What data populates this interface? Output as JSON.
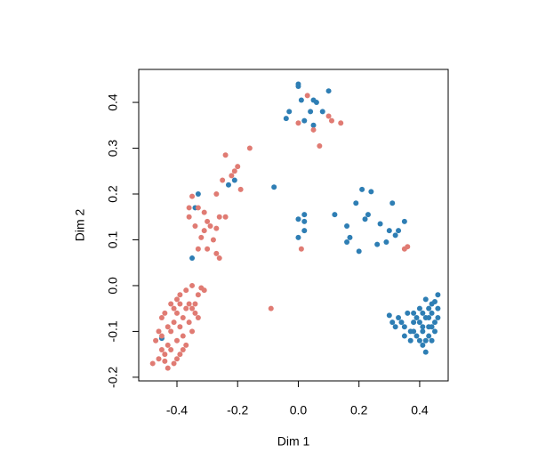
{
  "chart_data": {
    "type": "scatter",
    "x_label": "Dim 1",
    "y_label": "Dim 2",
    "xlim": [
      -0.526,
      0.494
    ],
    "ylim": [
      -0.208,
      0.472
    ],
    "xticks": [
      -0.4,
      -0.2,
      {
        "value": 0,
        "label": "0.0"
      },
      0.2,
      0.4
    ],
    "yticks": [
      -0.2,
      -0.1,
      {
        "value": 0,
        "label": "0.0"
      },
      0.1,
      0.2,
      0.3,
      0.4
    ],
    "series": [
      {
        "color": "#2e7eb4",
        "x": [
          0.0,
          0.0,
          0.1,
          -0.03,
          -0.04,
          0.01,
          0.05,
          0.04,
          0.02,
          0.05,
          0.08,
          0.06,
          -0.08,
          0.0,
          0.02,
          0.02,
          0.02,
          0.0,
          0.12,
          0.16,
          0.2,
          0.19,
          0.21,
          0.24,
          0.22,
          0.23,
          0.27,
          0.3,
          0.31,
          0.26,
          0.32,
          0.33,
          0.35,
          0.16,
          0.17,
          0.29,
          -0.33,
          -0.34,
          -0.35,
          -0.23,
          -0.21,
          -0.45,
          0.3,
          0.33,
          0.35,
          0.37,
          0.38,
          0.39,
          0.4,
          0.41,
          0.42,
          0.43,
          0.44,
          0.45,
          0.46,
          0.46,
          0.45,
          0.44,
          0.42,
          0.41,
          0.4,
          0.39,
          0.38,
          0.36,
          0.34,
          0.32,
          0.43,
          0.44,
          0.42,
          0.41,
          0.43,
          0.4,
          0.37,
          0.41,
          0.45,
          0.46,
          0.44,
          0.35,
          0.31,
          0.42,
          0.43,
          0.38
        ],
        "values": [
          0.44,
          0.435,
          0.425,
          0.38,
          0.365,
          0.405,
          0.405,
          0.38,
          0.36,
          0.35,
          0.38,
          0.4,
          0.215,
          0.145,
          0.155,
          0.14,
          0.12,
          0.105,
          0.155,
          0.13,
          0.075,
          0.18,
          0.21,
          0.205,
          0.145,
          0.155,
          0.135,
          0.12,
          0.18,
          0.09,
          0.11,
          0.12,
          0.14,
          0.095,
          0.105,
          0.095,
          0.2,
          0.17,
          0.06,
          0.22,
          0.23,
          -0.115,
          -0.065,
          -0.07,
          -0.09,
          -0.1,
          -0.06,
          -0.11,
          -0.05,
          -0.13,
          -0.145,
          -0.09,
          -0.06,
          -0.035,
          -0.02,
          -0.07,
          -0.1,
          -0.12,
          -0.07,
          -0.09,
          -0.08,
          -0.07,
          -0.08,
          -0.06,
          -0.08,
          -0.09,
          -0.05,
          -0.04,
          -0.03,
          -0.06,
          -0.11,
          -0.12,
          -0.12,
          -0.1,
          -0.08,
          -0.05,
          -0.09,
          -0.11,
          -0.08,
          -0.12,
          -0.07,
          -0.1
        ]
      },
      {
        "color": "#e07b73",
        "x": [
          0.03,
          0.1,
          0.11,
          0.14,
          0.05,
          0.0,
          0.07,
          0.35,
          0.36,
          0.01,
          -0.09,
          -0.16,
          -0.24,
          -0.2,
          -0.21,
          -0.22,
          -0.25,
          -0.27,
          -0.19,
          -0.35,
          -0.36,
          -0.33,
          -0.31,
          -0.3,
          -0.29,
          -0.26,
          -0.24,
          -0.27,
          -0.36,
          -0.34,
          -0.31,
          -0.32,
          -0.28,
          -0.3,
          -0.33,
          -0.27,
          -0.26,
          -0.35,
          -0.34,
          -0.33,
          -0.32,
          -0.31,
          -0.35,
          -0.37,
          -0.39,
          -0.4,
          -0.42,
          -0.44,
          -0.45,
          -0.46,
          -0.47,
          -0.48,
          -0.46,
          -0.44,
          -0.43,
          -0.42,
          -0.41,
          -0.4,
          -0.39,
          -0.38,
          -0.37,
          -0.36,
          -0.35,
          -0.37,
          -0.39,
          -0.41,
          -0.43,
          -0.44,
          -0.42,
          -0.4,
          -0.38,
          -0.36,
          -0.34,
          -0.43,
          -0.45,
          -0.41,
          -0.39,
          -0.33,
          -0.38,
          -0.4,
          -0.45
        ],
        "values": [
          0.415,
          0.37,
          0.36,
          0.355,
          0.34,
          0.355,
          0.305,
          0.08,
          0.085,
          0.08,
          -0.05,
          0.3,
          0.285,
          0.26,
          0.25,
          0.24,
          0.23,
          0.2,
          0.21,
          0.195,
          0.17,
          0.17,
          0.16,
          0.14,
          0.13,
          0.15,
          0.15,
          0.125,
          0.15,
          0.13,
          0.12,
          0.105,
          0.1,
          0.08,
          0.08,
          0.07,
          0.06,
          -0.05,
          -0.04,
          -0.02,
          -0.005,
          -0.01,
          0.0,
          -0.01,
          -0.02,
          -0.03,
          -0.04,
          -0.06,
          -0.07,
          -0.1,
          -0.12,
          -0.17,
          -0.16,
          -0.15,
          -0.13,
          -0.1,
          -0.08,
          -0.06,
          -0.09,
          -0.07,
          -0.05,
          -0.08,
          -0.1,
          -0.13,
          -0.15,
          -0.17,
          -0.18,
          -0.165,
          -0.14,
          -0.12,
          -0.11,
          -0.04,
          -0.06,
          -0.09,
          -0.11,
          -0.05,
          -0.04,
          -0.07,
          -0.14,
          -0.16,
          -0.14
        ]
      }
    ]
  }
}
